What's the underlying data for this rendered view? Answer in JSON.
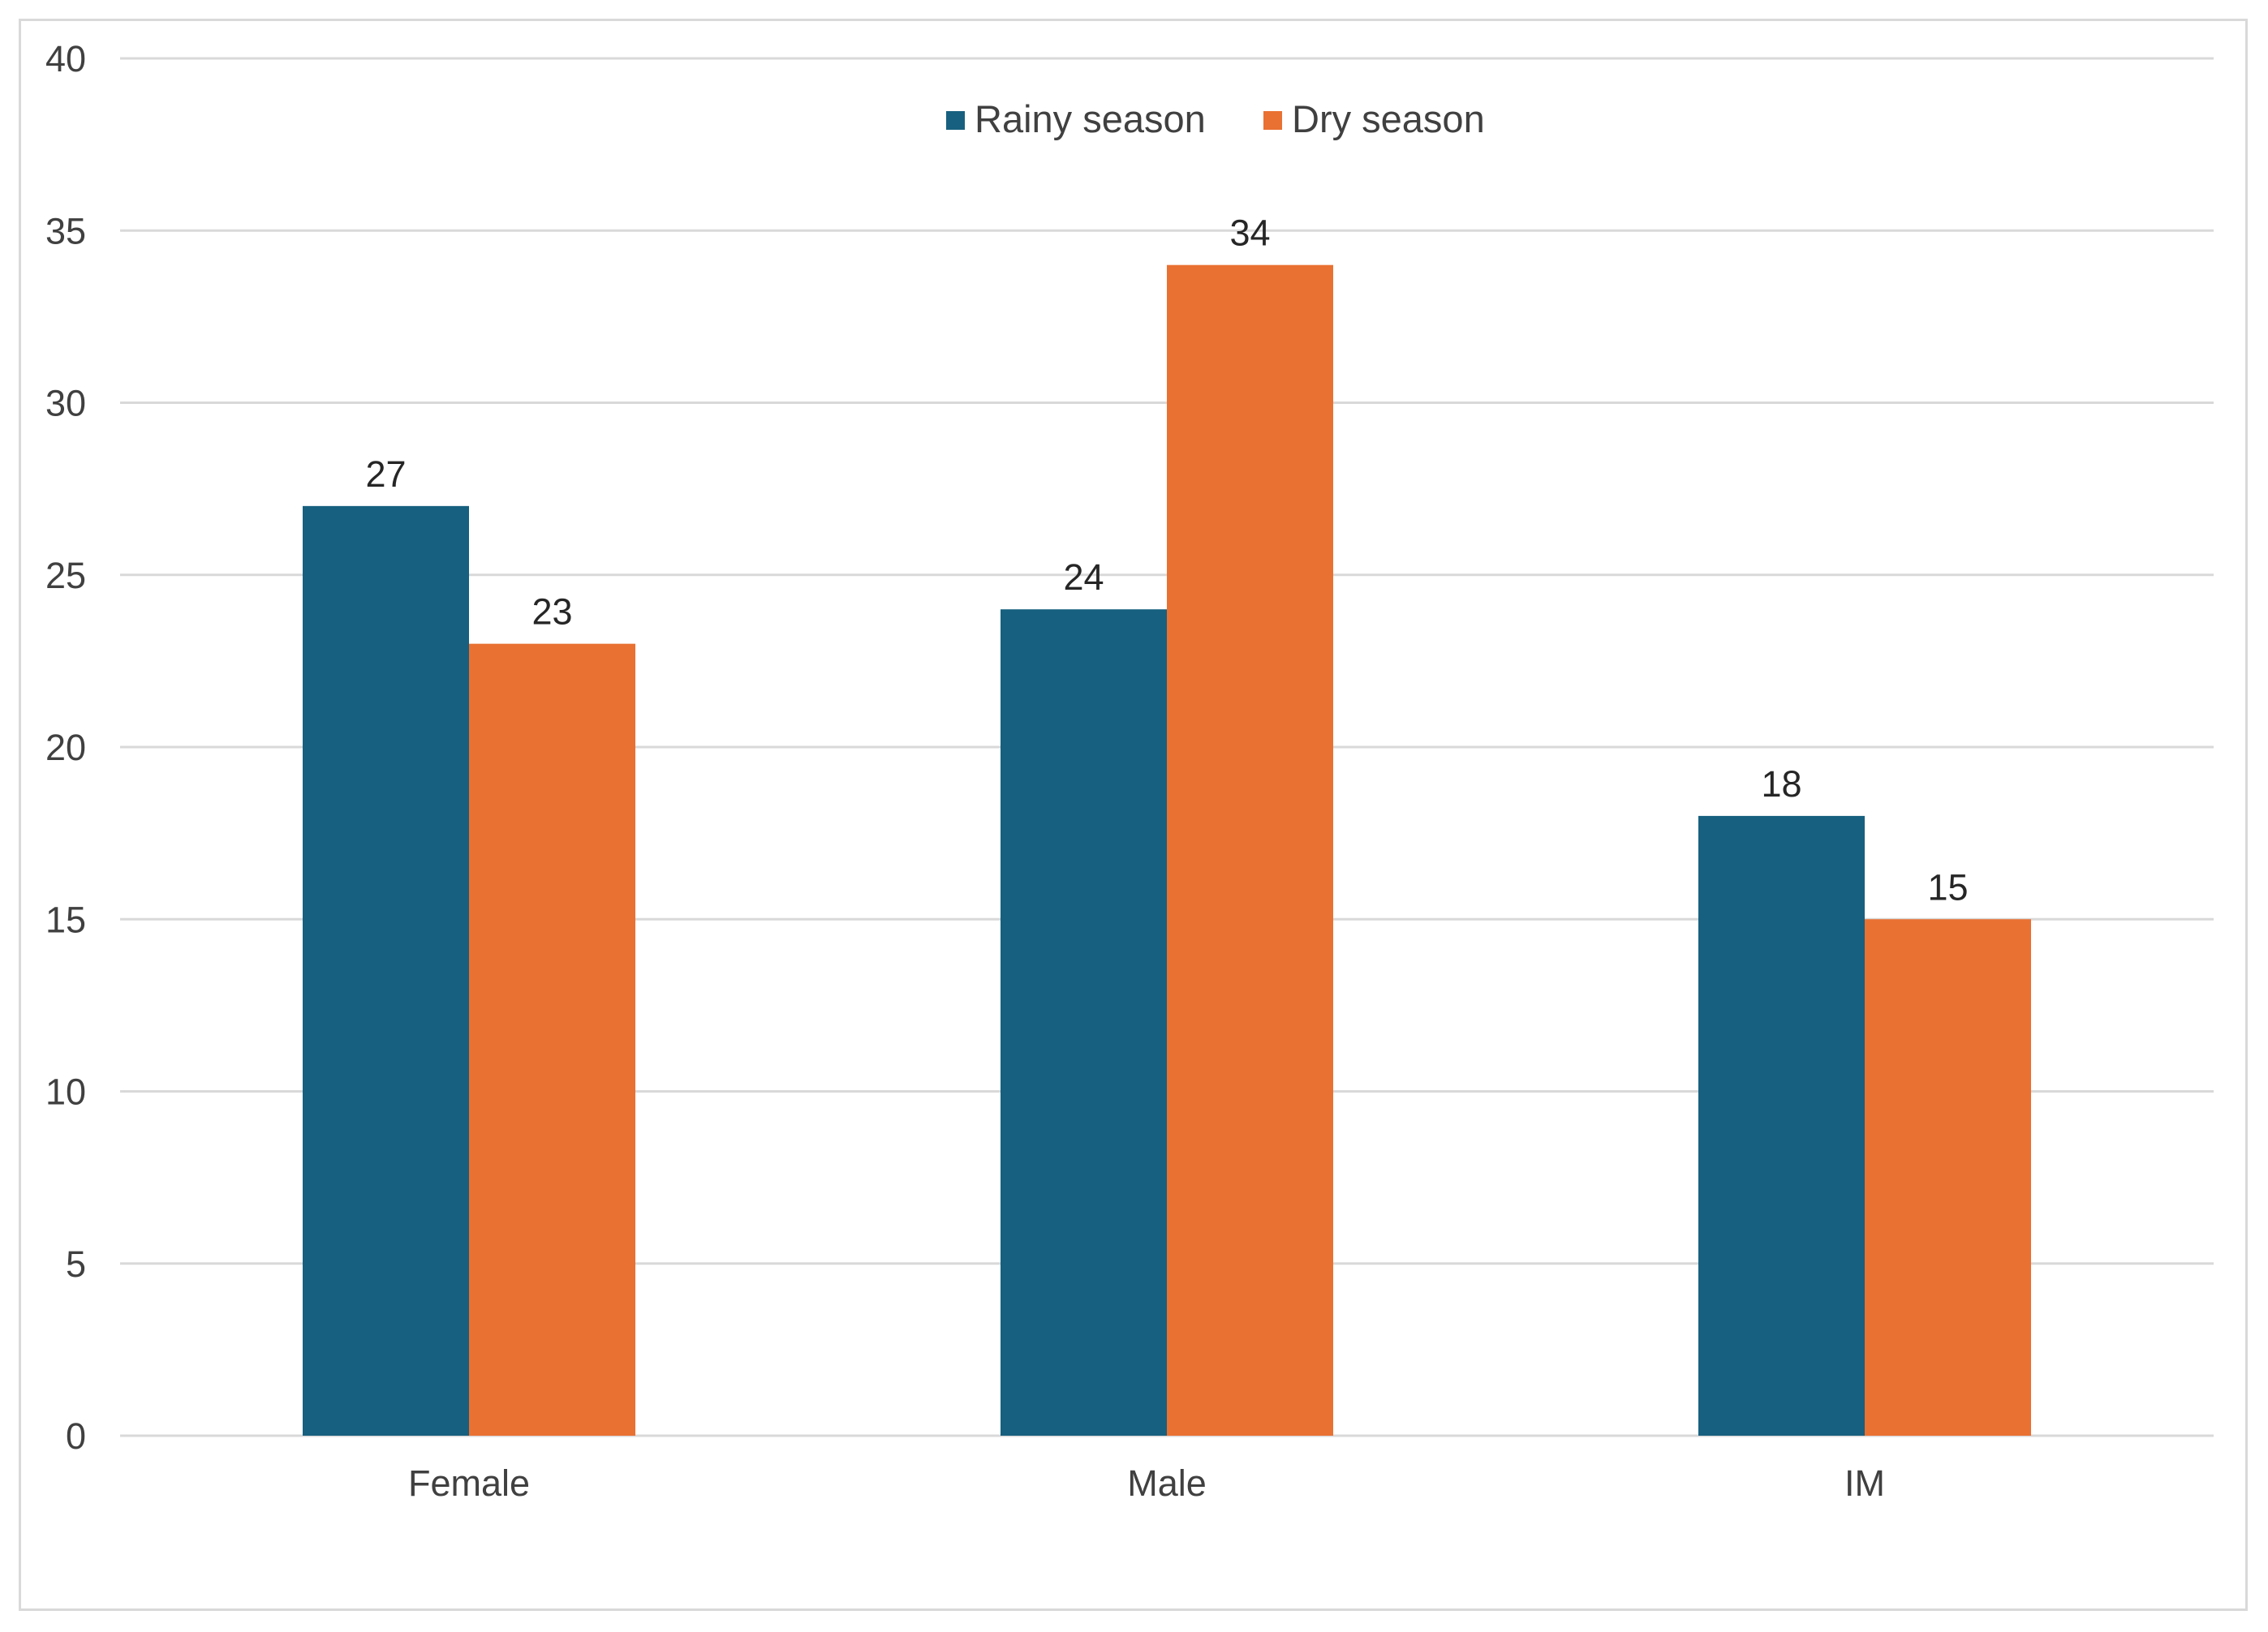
{
  "chart_data": {
    "type": "bar",
    "title": "",
    "xlabel": "",
    "ylabel": "",
    "categories": [
      "Female",
      "Male",
      "IM"
    ],
    "series": [
      {
        "name": "Rainy season",
        "color": "#17607f",
        "values": [
          27,
          24,
          18
        ]
      },
      {
        "name": "Dry season",
        "color": "#e97132",
        "values": [
          23,
          34,
          15
        ]
      }
    ],
    "ylim": [
      0,
      40
    ],
    "yticks": [
      0,
      5,
      10,
      15,
      20,
      25,
      30,
      35,
      40
    ],
    "grid": true,
    "legend_position": "top-center",
    "data_labels": true
  }
}
